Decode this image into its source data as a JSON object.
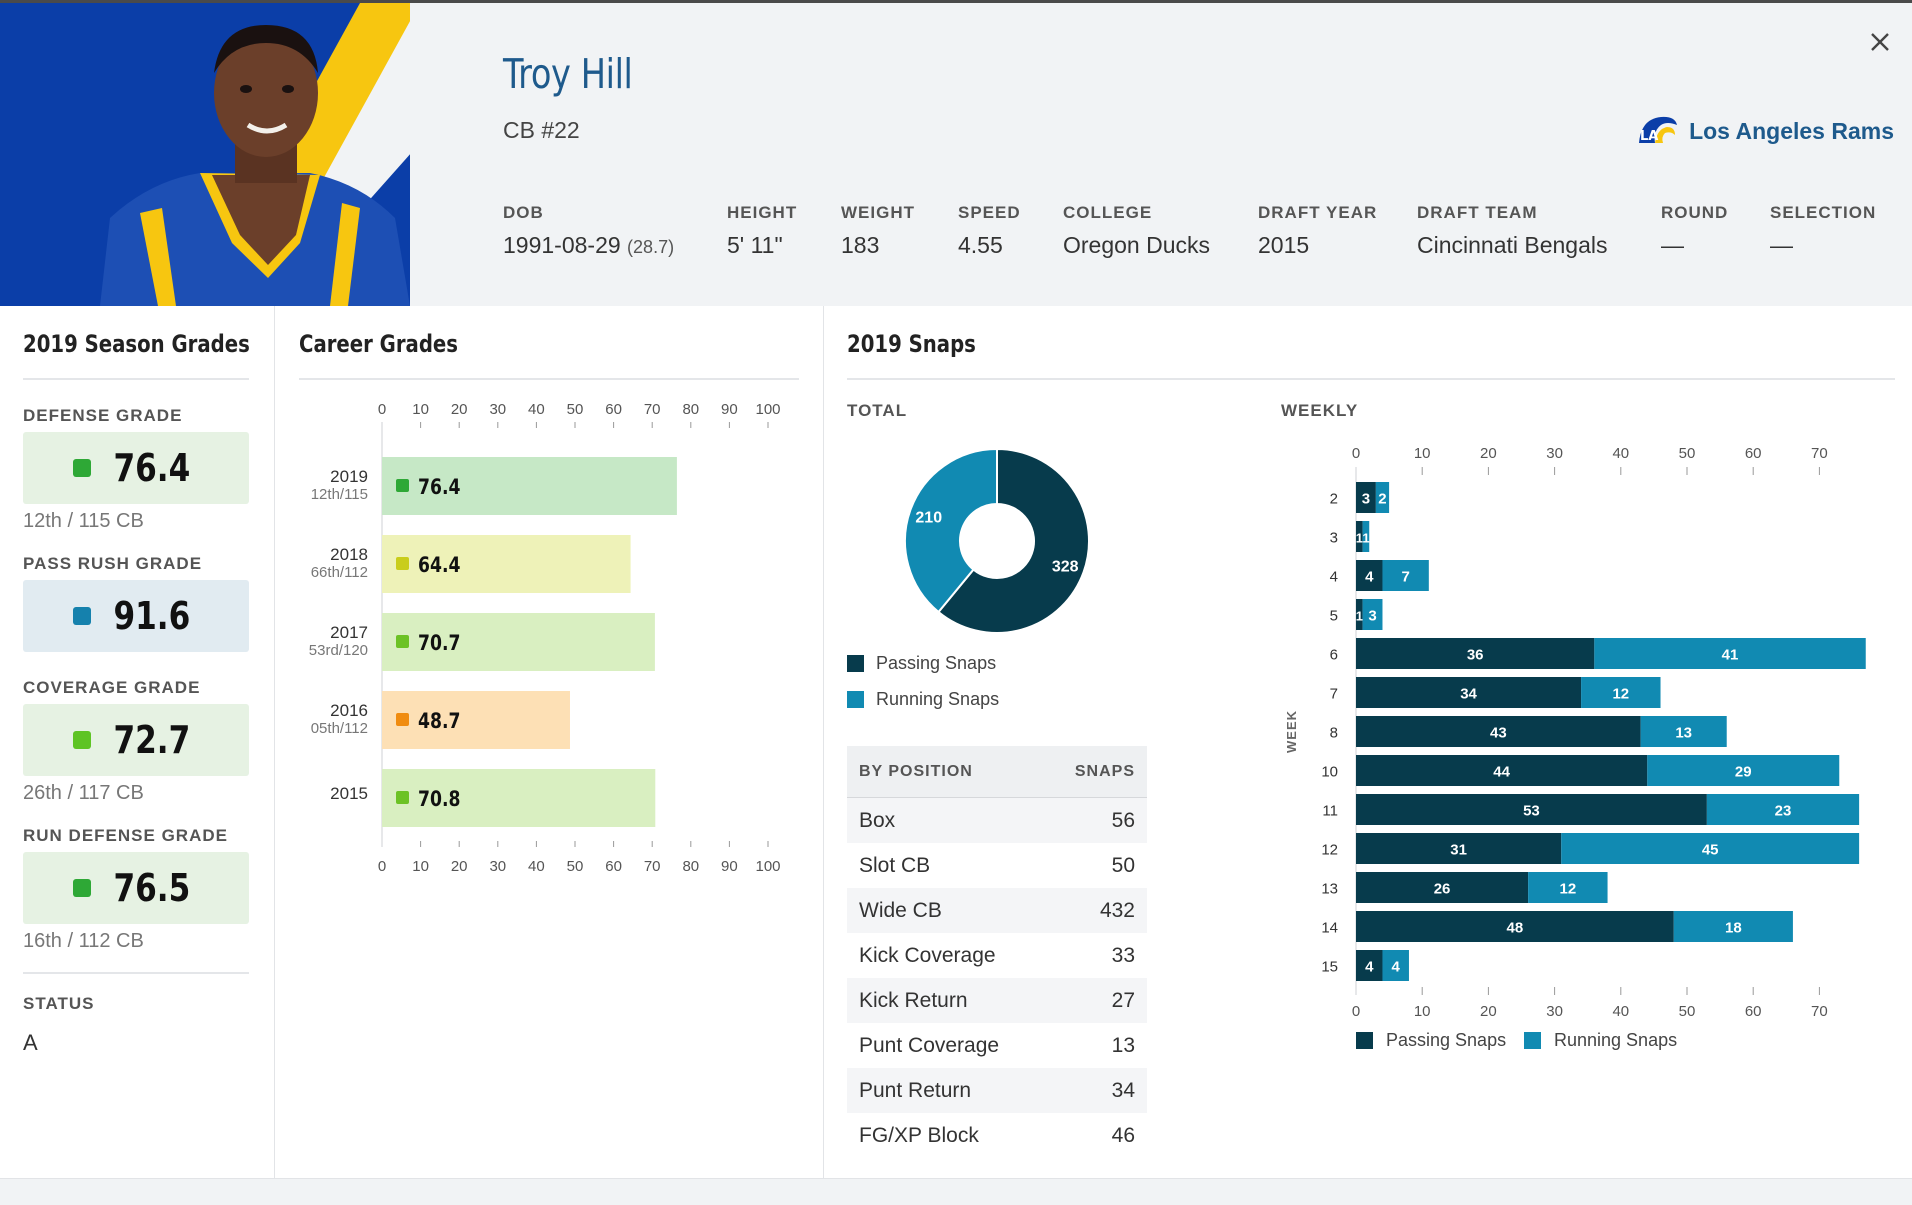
{
  "player": {
    "name": "Troy Hill",
    "position": "CB #22",
    "team": "Los Angeles Rams",
    "colors": {
      "primary": "#0b3ea8",
      "secondary": "#f7c610",
      "title": "#1e5a8c"
    }
  },
  "meta": [
    {
      "label": "DOB",
      "value": "1991-08-29",
      "extra": "(28.7)"
    },
    {
      "label": "HEIGHT",
      "value": "5' 11\""
    },
    {
      "label": "WEIGHT",
      "value": "183"
    },
    {
      "label": "SPEED",
      "value": "4.55"
    },
    {
      "label": "COLLEGE",
      "value": "Oregon Ducks"
    },
    {
      "label": "DRAFT YEAR",
      "value": "2015"
    },
    {
      "label": "DRAFT TEAM",
      "value": "Cincinnati Bengals"
    },
    {
      "label": "ROUND",
      "value": "—"
    },
    {
      "label": "SELECTION",
      "value": "—"
    }
  ],
  "season": {
    "title": "2019 Season Grades",
    "grades": [
      {
        "label": "DEFENSE GRADE",
        "value": "76.4",
        "rank": "12th / 115 CB",
        "color": "#2ea836",
        "bg": "#e6f2e3"
      },
      {
        "label": "PASS RUSH GRADE",
        "value": "91.6",
        "rank": "",
        "color": "#1581ad",
        "bg": "#e1ebf1"
      },
      {
        "label": "COVERAGE GRADE",
        "value": "72.7",
        "rank": "26th / 117 CB",
        "color": "#5ec424",
        "bg": "#e6f2e3"
      },
      {
        "label": "RUN DEFENSE GRADE",
        "value": "76.5",
        "rank": "16th / 112 CB",
        "color": "#2ea836",
        "bg": "#e6f2e3"
      }
    ],
    "status_label": "STATUS",
    "status_value": "A"
  },
  "career": {
    "title": "Career Grades",
    "chart_data": {
      "type": "bar",
      "orientation": "horizontal",
      "xlim": [
        0,
        100
      ],
      "ticks": [
        0,
        10,
        20,
        30,
        40,
        50,
        60,
        70,
        80,
        90,
        100
      ],
      "bars": [
        {
          "year": "2019",
          "rank": "12th/115",
          "value": 76.4,
          "fill": "#c6e8c6",
          "dot": "#2ea836"
        },
        {
          "year": "2018",
          "rank": "66th/112",
          "value": 64.4,
          "fill": "#eef2b8",
          "dot": "#c9cd1b"
        },
        {
          "year": "2017",
          "rank": "53rd/120",
          "value": 70.7,
          "fill": "#d9efc1",
          "dot": "#6cc225"
        },
        {
          "year": "2016",
          "rank": "05th/112",
          "value": 48.7,
          "fill": "#fde0b5",
          "dot": "#f08c10"
        },
        {
          "year": "2015",
          "rank": "",
          "value": 70.8,
          "fill": "#d9efc1",
          "dot": "#6cc225"
        }
      ]
    }
  },
  "snaps": {
    "title": "2019 Snaps",
    "total_label": "TOTAL",
    "weekly_label": "WEEKLY",
    "legend": {
      "passing": "Passing Snaps",
      "running": "Running Snaps"
    },
    "colors": {
      "passing": "#073b4c",
      "running": "#118ab2"
    },
    "chart_data": [
      {
        "type": "pie",
        "donut": true,
        "slices": [
          {
            "name": "Passing Snaps",
            "value": 328
          },
          {
            "name": "Running Snaps",
            "value": 210
          }
        ]
      },
      {
        "type": "bar",
        "orientation": "horizontal",
        "stacked": true,
        "ylabel": "WEEK",
        "xlim": [
          0,
          77
        ],
        "ticks": [
          0,
          10,
          20,
          30,
          40,
          50,
          60,
          70
        ],
        "weeks": [
          "2",
          "3",
          "4",
          "5",
          "6",
          "7",
          "8",
          "10",
          "11",
          "12",
          "13",
          "14",
          "15"
        ],
        "series": [
          {
            "name": "Passing Snaps",
            "values": [
              3,
              1,
              4,
              1,
              36,
              34,
              43,
              44,
              53,
              31,
              26,
              48,
              4
            ]
          },
          {
            "name": "Running Snaps",
            "values": [
              2,
              1,
              7,
              3,
              41,
              12,
              13,
              29,
              23,
              45,
              12,
              18,
              4
            ]
          }
        ]
      }
    ],
    "table": {
      "header_position": "BY POSITION",
      "header_snaps": "SNAPS",
      "rows": [
        {
          "position": "Box",
          "snaps": "56"
        },
        {
          "position": "Slot CB",
          "snaps": "50"
        },
        {
          "position": "Wide CB",
          "snaps": "432"
        },
        {
          "position": "Kick Coverage",
          "snaps": "33"
        },
        {
          "position": "Kick Return",
          "snaps": "27"
        },
        {
          "position": "Punt Coverage",
          "snaps": "13"
        },
        {
          "position": "Punt Return",
          "snaps": "34"
        },
        {
          "position": "FG/XP Block",
          "snaps": "46"
        }
      ]
    }
  }
}
